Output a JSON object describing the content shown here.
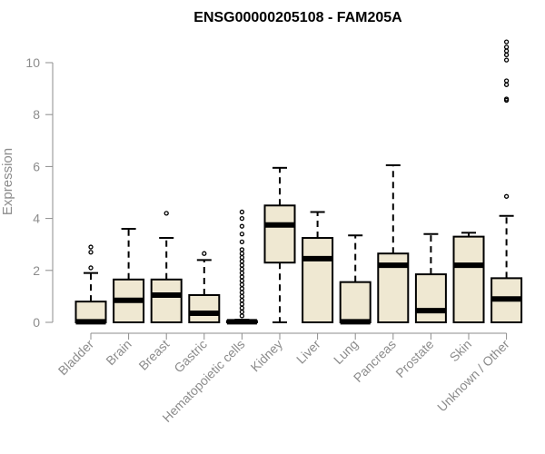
{
  "chart_data": {
    "type": "boxplot",
    "title": "ENSG00000205108 - FAM205A",
    "xlabel": "",
    "ylabel": "Expression",
    "ylim": [
      0,
      10
    ],
    "yticks": [
      0,
      2,
      4,
      6,
      8,
      10
    ],
    "colors": {
      "box_fill": "#efe8d2",
      "stroke": "#000000",
      "axis_text": "#8c8c8c",
      "title": "#000000"
    },
    "categories": [
      "Bladder",
      "Brain",
      "Breast",
      "Gastric",
      "Hematopoietic cells",
      "Kidney",
      "Liver",
      "Lung",
      "Pancreas",
      "Prostate",
      "Skin",
      "Unknown / Other"
    ],
    "boxes": [
      {
        "category": "Bladder",
        "whisker_low": 0,
        "q1": 0,
        "median": 0.02,
        "q3": 0.8,
        "whisker_high": 1.9,
        "outliers": [
          2.1,
          2.7,
          2.9
        ]
      },
      {
        "category": "Brain",
        "whisker_low": 0,
        "q1": 0,
        "median": 0.85,
        "q3": 1.65,
        "whisker_high": 3.6,
        "outliers": []
      },
      {
        "category": "Breast",
        "whisker_low": 0,
        "q1": 0,
        "median": 1.05,
        "q3": 1.65,
        "whisker_high": 3.25,
        "outliers": [
          4.2
        ]
      },
      {
        "category": "Gastric",
        "whisker_low": 0,
        "q1": 0,
        "median": 0.35,
        "q3": 1.05,
        "whisker_high": 2.4,
        "outliers": [
          2.65
        ]
      },
      {
        "category": "Hematopoietic cells",
        "whisker_low": 0,
        "q1": 0,
        "median": 0.02,
        "q3": 0.05,
        "whisker_high": 0.1,
        "outliers": [
          0.25,
          0.4,
          0.55,
          0.7,
          0.85,
          1.0,
          1.15,
          1.3,
          1.45,
          1.6,
          1.75,
          1.9,
          2.05,
          2.2,
          2.35,
          2.5,
          2.65,
          2.8,
          3.1,
          3.4,
          3.7,
          4.0,
          4.25
        ]
      },
      {
        "category": "Kidney",
        "whisker_low": 0,
        "q1": 2.3,
        "median": 3.75,
        "q3": 4.5,
        "whisker_high": 5.95,
        "outliers": []
      },
      {
        "category": "Liver",
        "whisker_low": 0,
        "q1": 0,
        "median": 2.45,
        "q3": 3.25,
        "whisker_high": 4.25,
        "outliers": []
      },
      {
        "category": "Lung",
        "whisker_low": 0,
        "q1": 0,
        "median": 0.02,
        "q3": 1.55,
        "whisker_high": 3.35,
        "outliers": []
      },
      {
        "category": "Pancreas",
        "whisker_low": 0,
        "q1": 0,
        "median": 2.2,
        "q3": 2.65,
        "whisker_high": 6.05,
        "outliers": []
      },
      {
        "category": "Prostate",
        "whisker_low": 0,
        "q1": 0,
        "median": 0.45,
        "q3": 1.85,
        "whisker_high": 3.4,
        "outliers": []
      },
      {
        "category": "Skin",
        "whisker_low": 0,
        "q1": 0,
        "median": 2.2,
        "q3": 3.3,
        "whisker_high": 3.45,
        "outliers": []
      },
      {
        "category": "Unknown / Other",
        "whisker_low": 0,
        "q1": 0,
        "median": 0.9,
        "q3": 1.7,
        "whisker_high": 4.1,
        "outliers": [
          4.85,
          8.55,
          8.6,
          9.15,
          9.3,
          10.1,
          10.3,
          10.45,
          10.6,
          10.8
        ]
      }
    ]
  }
}
